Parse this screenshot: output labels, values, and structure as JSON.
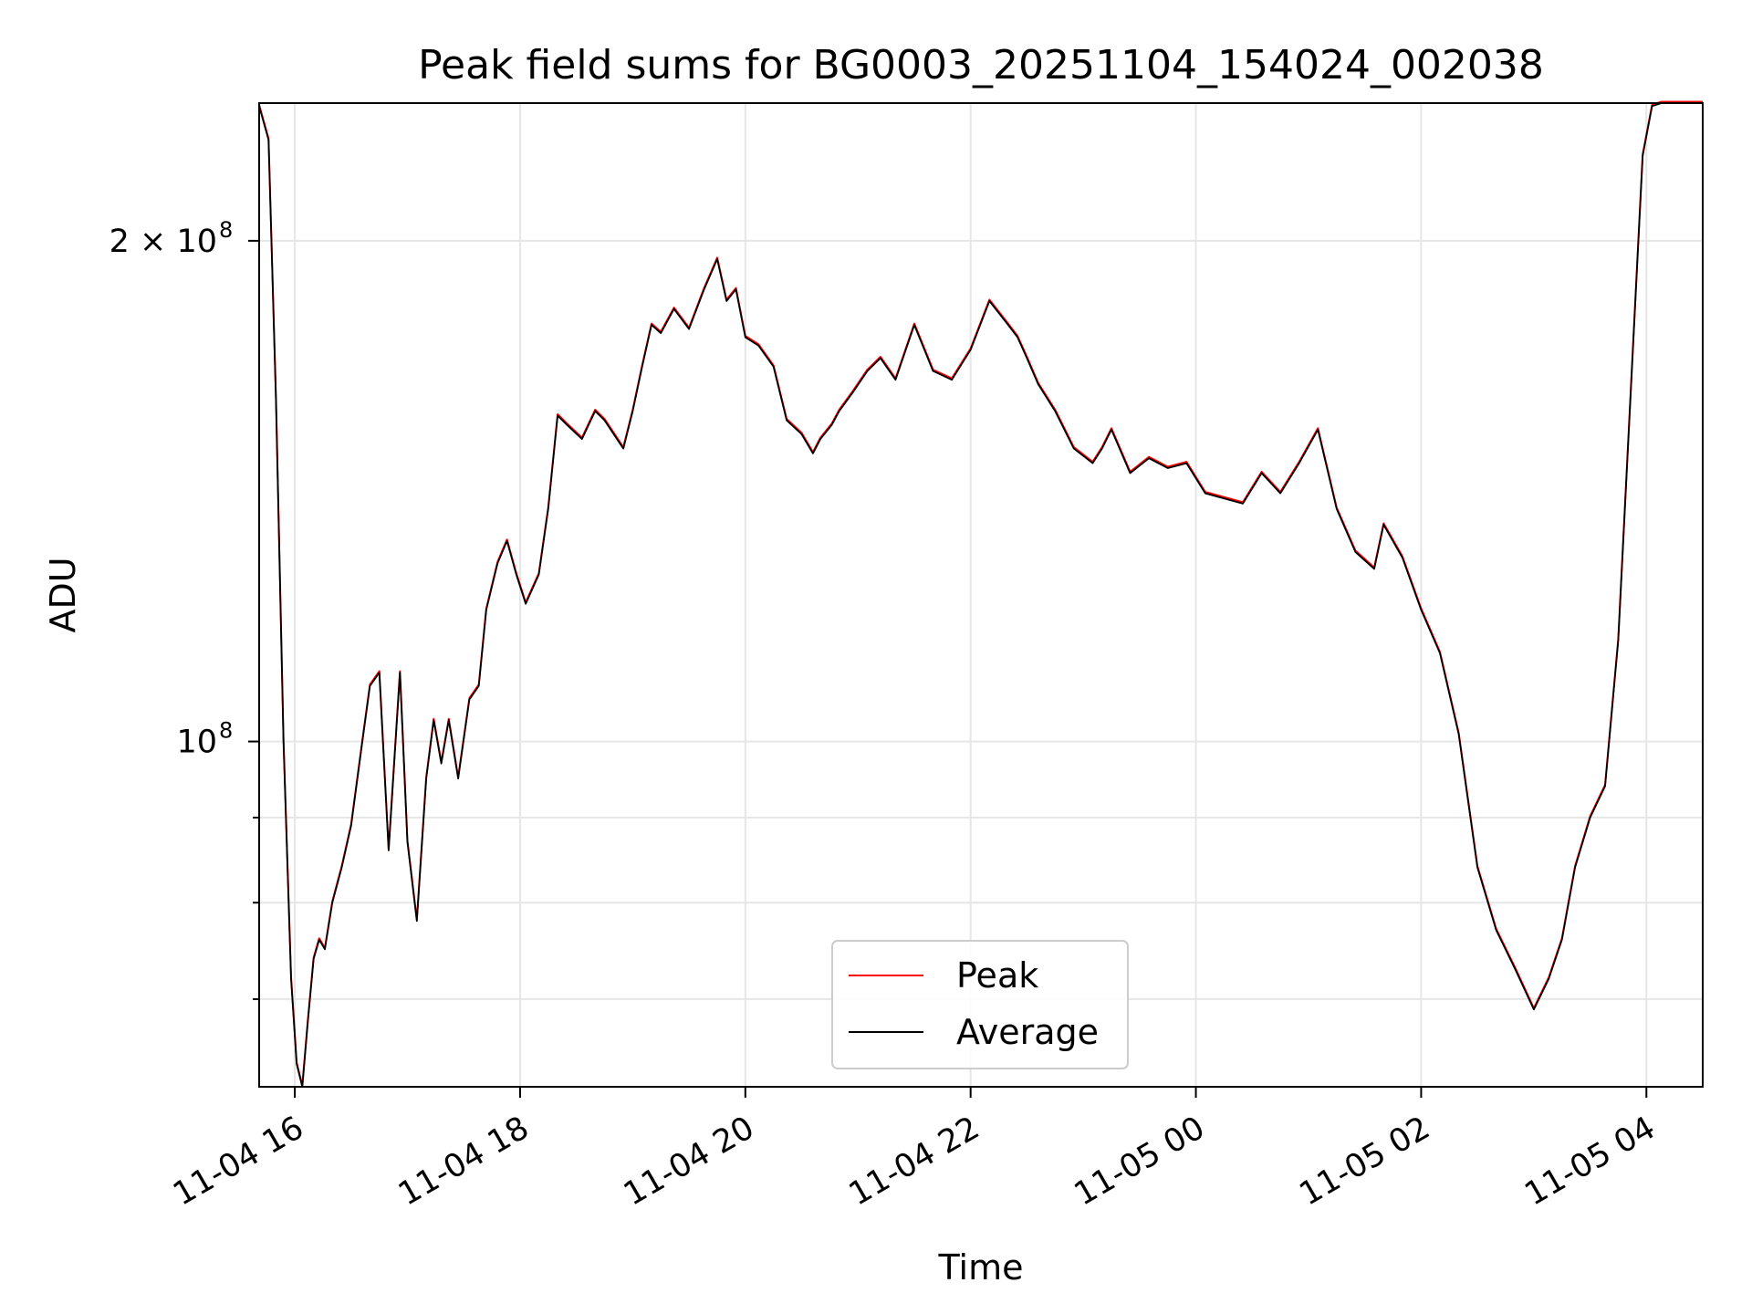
{
  "chart_data": {
    "type": "line",
    "title": "Peak field sums for BG0003_20251104_154024_002038",
    "xlabel": "Time",
    "ylabel": "ADU",
    "y_scale": "log",
    "ylim": [
      62000000,
      242000000
    ],
    "xlim": [
      "2025-11-04 15:41",
      "2025-11-05 04:30"
    ],
    "x_ticks": [
      {
        "t": "2025-11-04 16:00",
        "label": "11-04 16"
      },
      {
        "t": "2025-11-04 18:00",
        "label": "11-04 18"
      },
      {
        "t": "2025-11-04 20:00",
        "label": "11-04 20"
      },
      {
        "t": "2025-11-04 22:00",
        "label": "11-04 22"
      },
      {
        "t": "2025-11-05 00:00",
        "label": "11-05 00"
      },
      {
        "t": "2025-11-05 02:00",
        "label": "11-05 02"
      },
      {
        "t": "2025-11-05 04:00",
        "label": "11-05 04"
      }
    ],
    "y_major_ticks": [
      {
        "value": 100000000,
        "base": "10",
        "exp": "8"
      },
      {
        "value": 200000000,
        "base": "2 × 10",
        "exp": "8"
      }
    ],
    "y_minor_ticks": [
      70000000,
      80000000,
      90000000
    ],
    "grid": true,
    "legend_position": "lower-center",
    "series": [
      {
        "name": "Peak",
        "color": "#ff0000"
      },
      {
        "name": "Average",
        "color": "#000000"
      }
    ],
    "x": [
      "2025-11-04 15:41",
      "2025-11-04 15:46",
      "2025-11-04 15:50",
      "2025-11-04 15:54",
      "2025-11-04 15:58",
      "2025-11-04 16:01",
      "2025-11-04 16:04",
      "2025-11-04 16:07",
      "2025-11-04 16:10",
      "2025-11-04 16:13",
      "2025-11-04 16:16",
      "2025-11-04 16:20",
      "2025-11-04 16:25",
      "2025-11-04 16:30",
      "2025-11-04 16:36",
      "2025-11-04 16:40",
      "2025-11-04 16:45",
      "2025-11-04 16:50",
      "2025-11-04 16:56",
      "2025-11-04 17:00",
      "2025-11-04 17:05",
      "2025-11-04 17:10",
      "2025-11-04 17:14",
      "2025-11-04 17:18",
      "2025-11-04 17:22",
      "2025-11-04 17:27",
      "2025-11-04 17:33",
      "2025-11-04 17:38",
      "2025-11-04 17:42",
      "2025-11-04 17:48",
      "2025-11-04 17:53",
      "2025-11-04 17:58",
      "2025-11-04 18:03",
      "2025-11-04 18:10",
      "2025-11-04 18:15",
      "2025-11-04 18:20",
      "2025-11-04 18:25",
      "2025-11-04 18:33",
      "2025-11-04 18:40",
      "2025-11-04 18:45",
      "2025-11-04 18:55",
      "2025-11-04 19:00",
      "2025-11-04 19:05",
      "2025-11-04 19:10",
      "2025-11-04 19:15",
      "2025-11-04 19:22",
      "2025-11-04 19:30",
      "2025-11-04 19:38",
      "2025-11-04 19:45",
      "2025-11-04 19:50",
      "2025-11-04 19:55",
      "2025-11-04 20:00",
      "2025-11-04 20:07",
      "2025-11-04 20:15",
      "2025-11-04 20:22",
      "2025-11-04 20:30",
      "2025-11-04 20:36",
      "2025-11-04 20:40",
      "2025-11-04 20:46",
      "2025-11-04 20:50",
      "2025-11-04 20:57",
      "2025-11-04 21:05",
      "2025-11-04 21:12",
      "2025-11-04 21:20",
      "2025-11-04 21:30",
      "2025-11-04 21:40",
      "2025-11-04 21:50",
      "2025-11-04 22:00",
      "2025-11-04 22:10",
      "2025-11-04 22:20",
      "2025-11-04 22:25",
      "2025-11-04 22:30",
      "2025-11-04 22:36",
      "2025-11-04 22:45",
      "2025-11-04 22:55",
      "2025-11-04 23:05",
      "2025-11-04 23:10",
      "2025-11-04 23:15",
      "2025-11-04 23:25",
      "2025-11-04 23:35",
      "2025-11-04 23:45",
      "2025-11-04 23:55",
      "2025-11-05 00:05",
      "2025-11-05 00:15",
      "2025-11-05 00:25",
      "2025-11-05 00:35",
      "2025-11-05 00:45",
      "2025-11-05 00:55",
      "2025-11-05 01:05",
      "2025-11-05 01:15",
      "2025-11-05 01:25",
      "2025-11-05 01:35",
      "2025-11-05 01:40",
      "2025-11-05 01:50",
      "2025-11-05 02:00",
      "2025-11-05 02:10",
      "2025-11-05 02:20",
      "2025-11-05 02:30",
      "2025-11-05 02:40",
      "2025-11-05 02:50",
      "2025-11-05 03:00",
      "2025-11-05 03:08",
      "2025-11-05 03:15",
      "2025-11-05 03:22",
      "2025-11-05 03:30",
      "2025-11-05 03:38",
      "2025-11-05 03:45",
      "2025-11-05 03:52",
      "2025-11-05 03:58",
      "2025-11-05 04:03",
      "2025-11-05 04:08",
      "2025-11-05 04:13",
      "2025-11-05 04:18",
      "2025-11-05 04:23",
      "2025-11-05 04:26",
      "2025-11-05 04:30"
    ],
    "values": [
      241000000,
      230000000,
      160000000,
      100000000,
      72000000,
      64000000,
      62000000,
      68000000,
      74000000,
      76000000,
      75000000,
      80000000,
      84000000,
      89000000,
      100000000,
      108000000,
      110000000,
      86000000,
      110000000,
      87000000,
      78000000,
      95000000,
      103000000,
      97000000,
      103000000,
      95000000,
      106000000,
      108000000,
      120000000,
      128000000,
      132000000,
      126000000,
      121000000,
      126000000,
      138000000,
      157000000,
      155000000,
      152000000,
      158000000,
      156000000,
      150000000,
      158000000,
      168000000,
      178000000,
      176000000,
      182000000,
      177000000,
      187000000,
      195000000,
      184000000,
      187000000,
      175000000,
      173000000,
      168000000,
      156000000,
      153000000,
      149000000,
      152000000,
      155000000,
      158000000,
      162000000,
      167000000,
      170000000,
      165000000,
      178000000,
      167000000,
      165000000,
      172000000,
      184000000,
      178000000,
      175000000,
      170000000,
      164000000,
      158000000,
      150000000,
      147000000,
      150000000,
      154000000,
      145000000,
      148000000,
      146000000,
      147000000,
      141000000,
      140000000,
      139000000,
      145000000,
      141000000,
      147000000,
      154000000,
      138000000,
      130000000,
      127000000,
      135000000,
      129000000,
      120000000,
      113000000,
      101000000,
      84000000,
      77000000,
      73000000,
      69000000,
      72000000,
      76000000,
      84000000,
      90000000,
      94000000,
      115000000,
      165000000,
      225000000,
      241000000,
      242000000,
      242000000,
      242000000,
      242000000,
      242000000,
      242000000
    ]
  }
}
